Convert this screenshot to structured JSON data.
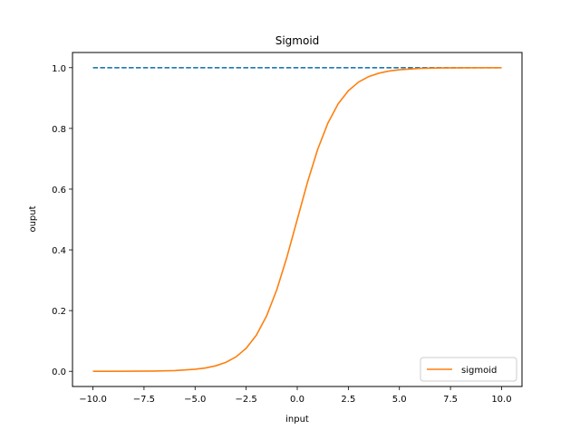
{
  "chart_data": {
    "type": "line",
    "title": "Sigmoid",
    "xlabel": "input",
    "ylabel": "ouput",
    "xlim": [
      -11.0,
      11.0
    ],
    "ylim": [
      -0.05,
      1.05
    ],
    "x_ticks": [
      -10.0,
      -7.5,
      -5.0,
      -2.5,
      0.0,
      2.5,
      5.0,
      7.5,
      10.0
    ],
    "x_tick_labels": [
      "−10.0",
      "−7.5",
      "−5.0",
      "−2.5",
      "0.0",
      "2.5",
      "5.0",
      "7.5",
      "10.0"
    ],
    "y_ticks": [
      0.0,
      0.2,
      0.4,
      0.6,
      0.8,
      1.0
    ],
    "y_tick_labels": [
      "0.0",
      "0.2",
      "0.4",
      "0.6",
      "0.8",
      "1.0"
    ],
    "grid": false,
    "legend": {
      "location": "lower-right",
      "entries": [
        "sigmoid"
      ]
    },
    "series": [
      {
        "label": "",
        "style": "dashed",
        "color": "#1f77b4",
        "x": [
          -10,
          10
        ],
        "y": [
          1.0,
          1.0
        ]
      },
      {
        "name": "sigmoid",
        "style": "solid",
        "color": "#ff7f0e",
        "x": [
          -10,
          -9,
          -8,
          -7,
          -6,
          -5,
          -4.5,
          -4,
          -3.5,
          -3,
          -2.5,
          -2,
          -1.5,
          -1,
          -0.5,
          0,
          0.5,
          1,
          1.5,
          2,
          2.5,
          3,
          3.5,
          4,
          4.5,
          5,
          6,
          7,
          8,
          9,
          10
        ],
        "y": [
          5e-05,
          0.00012,
          0.00034,
          0.00091,
          0.00247,
          0.00669,
          0.01099,
          0.01799,
          0.02931,
          0.04743,
          0.07586,
          0.1192,
          0.18243,
          0.26894,
          0.37754,
          0.5,
          0.62246,
          0.73106,
          0.81757,
          0.8808,
          0.92414,
          0.95257,
          0.97069,
          0.98201,
          0.98901,
          0.99331,
          0.99753,
          0.99909,
          0.99966,
          0.99988,
          0.99995
        ]
      }
    ]
  }
}
